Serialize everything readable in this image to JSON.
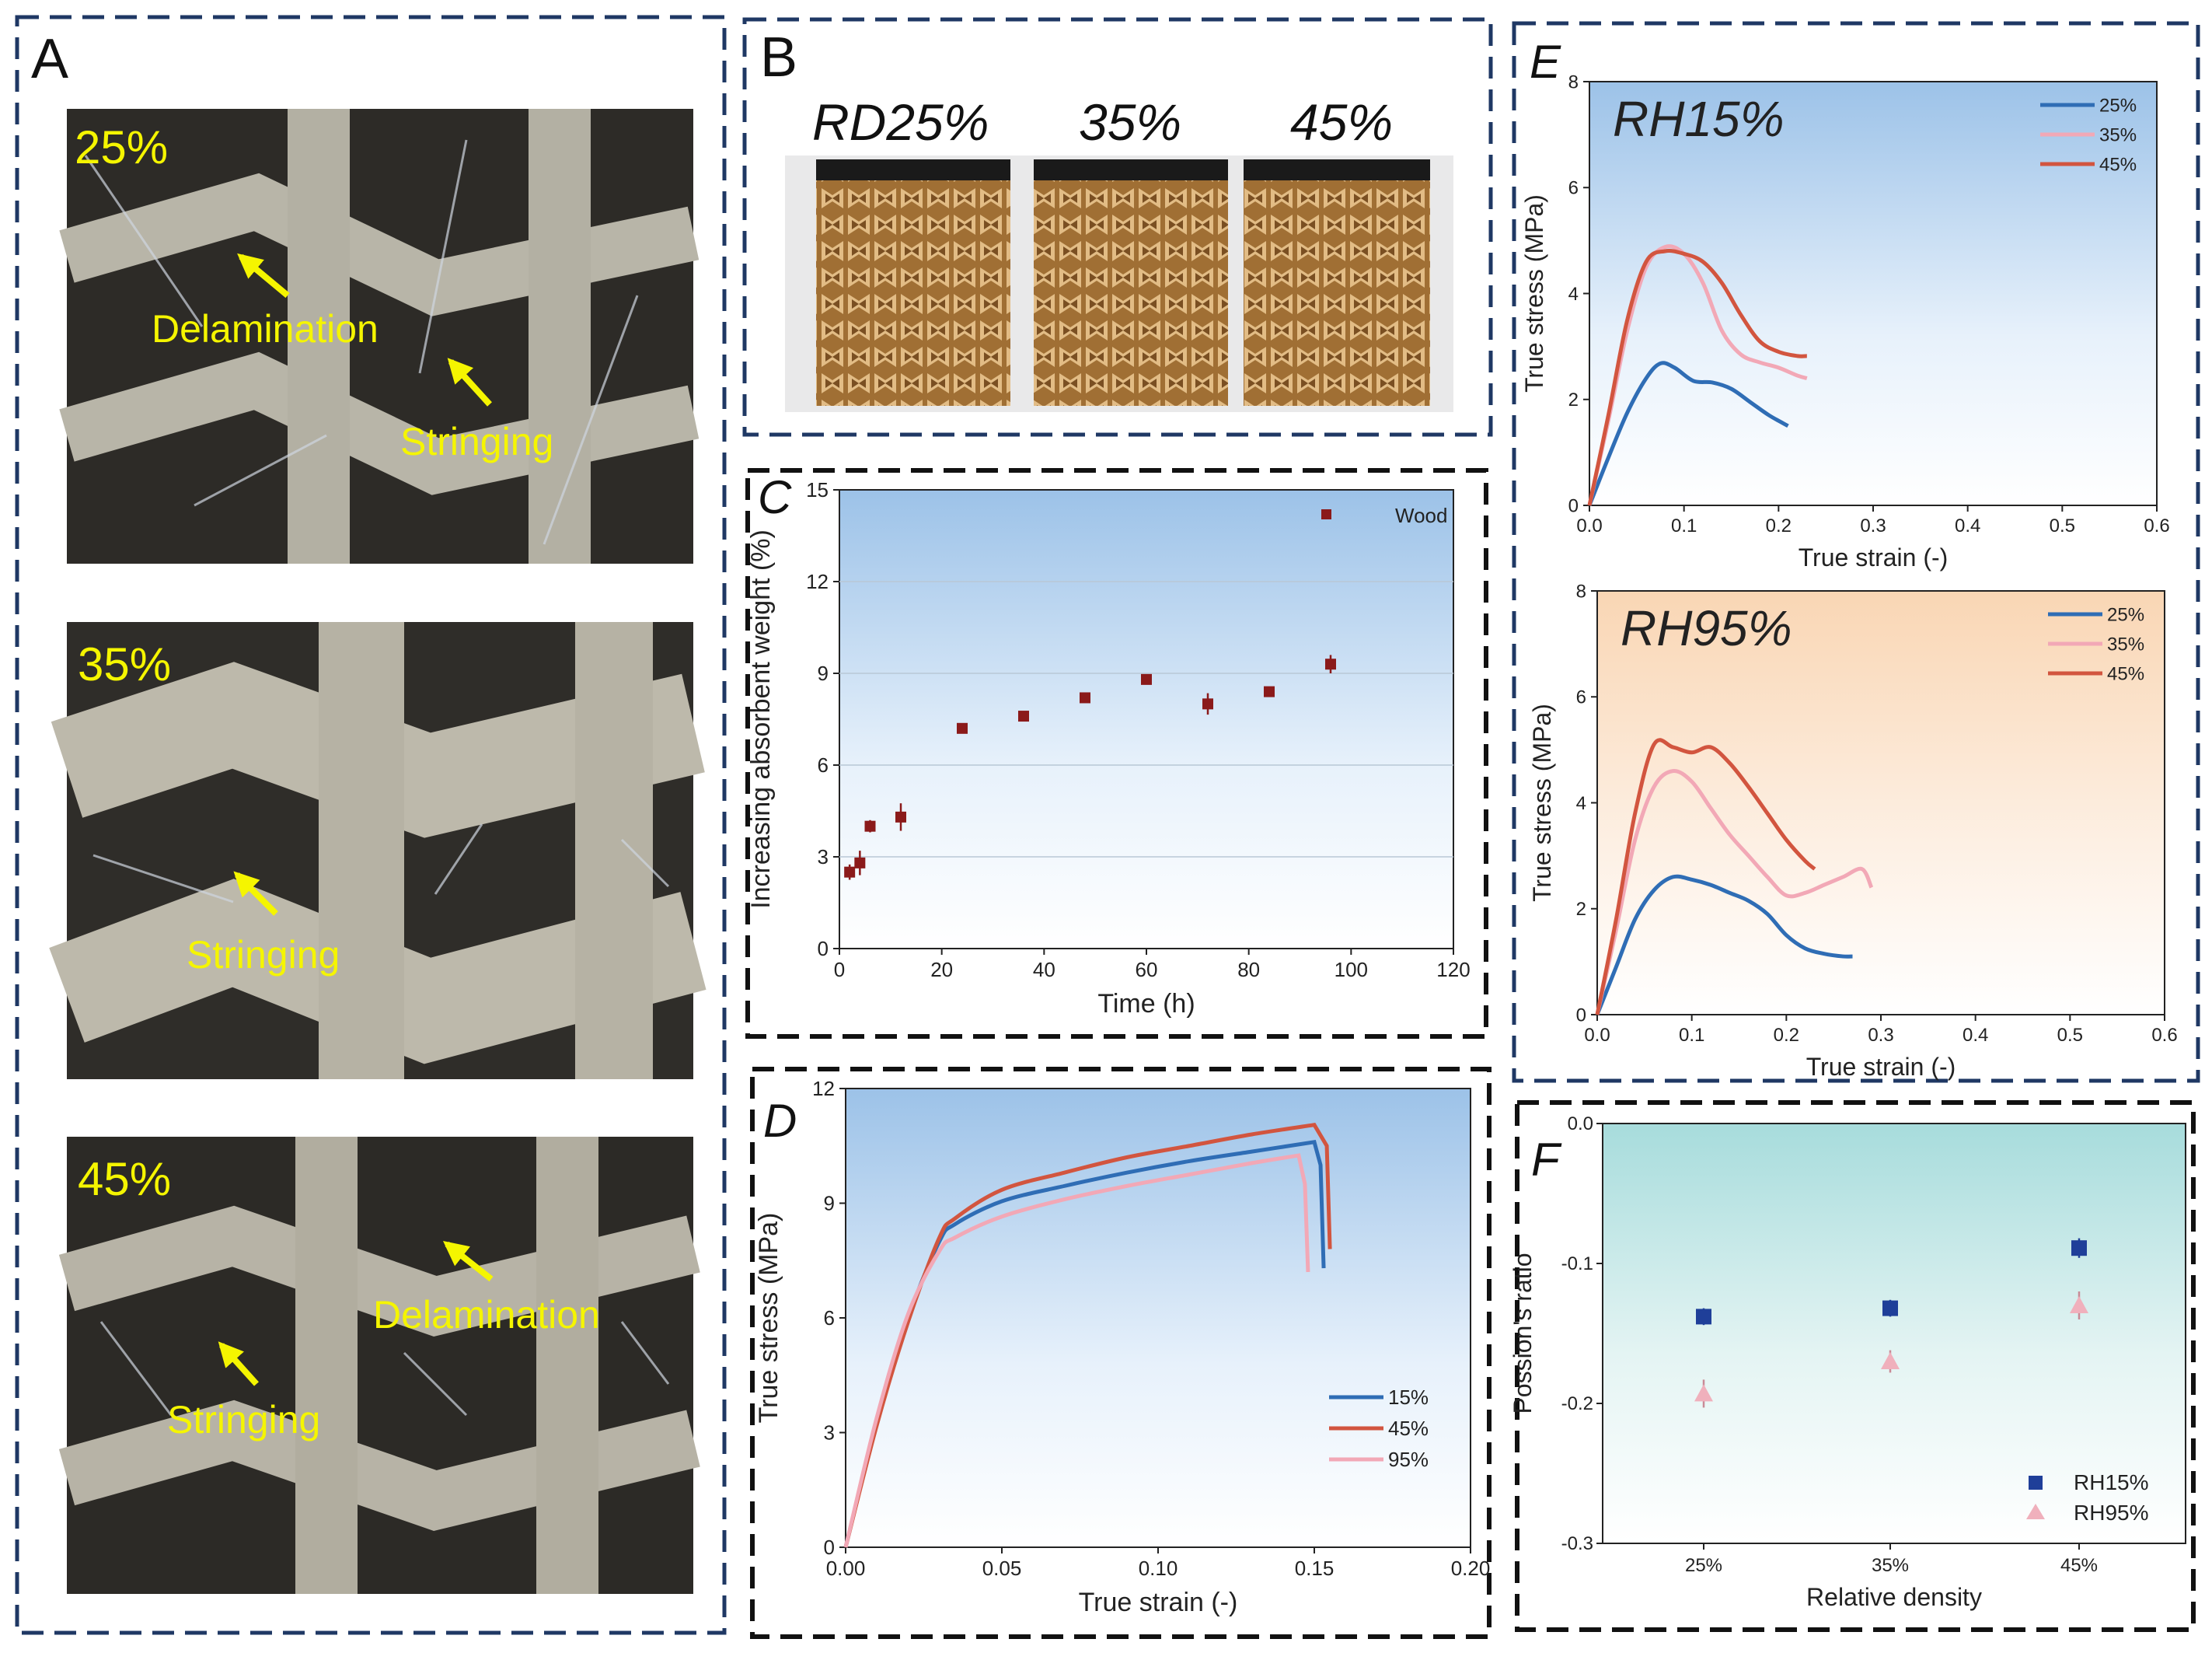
{
  "panels": {
    "A": {
      "letter": "A",
      "photos": [
        {
          "label": "25%",
          "annotations": [
            "Delamination",
            "Stringing"
          ]
        },
        {
          "label": "35%",
          "annotations": [
            "Stringing"
          ]
        },
        {
          "label": "45%",
          "annotations": [
            "Delamination",
            "Stringing"
          ]
        }
      ]
    },
    "B": {
      "letter": "B",
      "sample_labels": [
        "RD25%",
        "35%",
        "45%"
      ]
    }
  },
  "colors": {
    "border_navy": "#1f3864",
    "border_black": "#111111",
    "annotation": "#f5f500",
    "blue_line": "#2f6db5",
    "red_line": "#d2553f",
    "pink_line": "#f2a8b6",
    "marker_red": "#8b1a1a",
    "marker_blue": "#1f3f99",
    "marker_pink": "#f0b0bc"
  },
  "chart_data": [
    {
      "id": "C",
      "type": "scatter",
      "panel_letter": "C",
      "xlabel": "Time (h)",
      "ylabel": "Increasing absorbent weight (%)",
      "xlim": [
        0,
        120
      ],
      "ylim": [
        0,
        15
      ],
      "xticks": [
        "0",
        "20",
        "40",
        "60",
        "80",
        "100",
        "120"
      ],
      "yticks": [
        "0",
        "3",
        "6",
        "9",
        "12",
        "15"
      ],
      "grid": true,
      "legend": "top-right",
      "series": [
        {
          "name": "Wood",
          "x": [
            2,
            4,
            6,
            12,
            24,
            36,
            48,
            60,
            72,
            84,
            96
          ],
          "y": [
            2.5,
            2.8,
            4.0,
            4.3,
            7.2,
            7.6,
            8.2,
            8.8,
            8.0,
            8.4,
            9.3
          ],
          "err": [
            0.25,
            0.4,
            0.2,
            0.45,
            0.1,
            0.1,
            0.1,
            0.1,
            0.35,
            0.15,
            0.3
          ]
        }
      ]
    },
    {
      "id": "D",
      "type": "line",
      "panel_letter": "D",
      "xlabel": "True strain (-)",
      "ylabel": "True stress (MPa)",
      "xlim": [
        0,
        0.2
      ],
      "ylim": [
        0,
        12
      ],
      "xticks": [
        "0.00",
        "0.05",
        "0.10",
        "0.15",
        "0.20"
      ],
      "yticks": [
        "0",
        "3",
        "6",
        "9",
        "12"
      ],
      "legend": "bottom-right",
      "series": [
        {
          "name": "15%",
          "x": [
            0,
            0.01,
            0.02,
            0.03,
            0.035,
            0.05,
            0.07,
            0.09,
            0.11,
            0.13,
            0.15,
            0.152,
            0.153
          ],
          "y": [
            0,
            3.3,
            6.0,
            8.0,
            8.45,
            9.05,
            9.45,
            9.8,
            10.1,
            10.35,
            10.6,
            10.0,
            7.3
          ]
        },
        {
          "name": "45%",
          "x": [
            0,
            0.01,
            0.02,
            0.03,
            0.035,
            0.05,
            0.07,
            0.09,
            0.11,
            0.13,
            0.15,
            0.154,
            0.155
          ],
          "y": [
            0,
            3.2,
            5.9,
            8.1,
            8.6,
            9.35,
            9.8,
            10.2,
            10.5,
            10.8,
            11.05,
            10.5,
            7.8
          ]
        },
        {
          "name": "95%",
          "x": [
            0,
            0.01,
            0.02,
            0.03,
            0.035,
            0.05,
            0.07,
            0.09,
            0.11,
            0.13,
            0.145,
            0.147,
            0.148
          ],
          "y": [
            0,
            3.4,
            6.1,
            7.75,
            8.1,
            8.65,
            9.1,
            9.45,
            9.75,
            10.05,
            10.25,
            9.5,
            7.2
          ]
        }
      ]
    },
    {
      "id": "E1",
      "type": "line",
      "panel_letter": "E",
      "title": "RH15%",
      "xlabel": "True strain (-)",
      "ylabel": "True stress (MPa)",
      "xlim": [
        0,
        0.6
      ],
      "ylim": [
        0,
        8
      ],
      "xticks": [
        "0.0",
        "0.1",
        "0.2",
        "0.3",
        "0.4",
        "0.5",
        "0.6"
      ],
      "yticks": [
        "0",
        "2",
        "4",
        "6",
        "8"
      ],
      "legend": "top-right",
      "series": [
        {
          "name": "25%",
          "x": [
            0,
            0.02,
            0.04,
            0.06,
            0.075,
            0.09,
            0.11,
            0.13,
            0.15,
            0.17,
            0.19,
            0.21
          ],
          "y": [
            0,
            0.9,
            1.75,
            2.4,
            2.68,
            2.6,
            2.35,
            2.32,
            2.2,
            1.95,
            1.7,
            1.5
          ]
        },
        {
          "name": "35%",
          "x": [
            0,
            0.02,
            0.04,
            0.06,
            0.08,
            0.1,
            0.12,
            0.14,
            0.16,
            0.18,
            0.2,
            0.22,
            0.23
          ],
          "y": [
            0,
            1.6,
            3.3,
            4.5,
            4.88,
            4.75,
            4.2,
            3.3,
            2.85,
            2.7,
            2.6,
            2.45,
            2.4
          ]
        },
        {
          "name": "45%",
          "x": [
            0,
            0.02,
            0.04,
            0.06,
            0.08,
            0.1,
            0.12,
            0.14,
            0.16,
            0.18,
            0.2,
            0.22,
            0.23
          ],
          "y": [
            0,
            1.7,
            3.5,
            4.6,
            4.8,
            4.75,
            4.6,
            4.2,
            3.6,
            3.1,
            2.9,
            2.82,
            2.82
          ]
        }
      ]
    },
    {
      "id": "E2",
      "type": "line",
      "title": "RH95%",
      "xlabel": "True strain (-)",
      "ylabel": "True stress (MPa)",
      "xlim": [
        0,
        0.6
      ],
      "ylim": [
        0,
        8
      ],
      "xticks": [
        "0.0",
        "0.1",
        "0.2",
        "0.3",
        "0.4",
        "0.5",
        "0.6"
      ],
      "yticks": [
        "0",
        "2",
        "4",
        "6",
        "8"
      ],
      "legend": "top-right",
      "series": [
        {
          "name": "25%",
          "x": [
            0,
            0.02,
            0.04,
            0.06,
            0.08,
            0.1,
            0.12,
            0.14,
            0.16,
            0.18,
            0.2,
            0.22,
            0.24,
            0.26,
            0.27
          ],
          "y": [
            0,
            0.9,
            1.8,
            2.35,
            2.6,
            2.55,
            2.45,
            2.3,
            2.15,
            1.9,
            1.5,
            1.25,
            1.15,
            1.1,
            1.1
          ]
        },
        {
          "name": "35%",
          "x": [
            0,
            0.02,
            0.04,
            0.06,
            0.08,
            0.1,
            0.12,
            0.14,
            0.16,
            0.18,
            0.2,
            0.22,
            0.24,
            0.26,
            0.28,
            0.29
          ],
          "y": [
            0,
            1.6,
            3.3,
            4.3,
            4.6,
            4.4,
            3.9,
            3.4,
            3.0,
            2.6,
            2.25,
            2.3,
            2.45,
            2.6,
            2.75,
            2.4
          ]
        },
        {
          "name": "45%",
          "x": [
            0,
            0.02,
            0.04,
            0.06,
            0.08,
            0.1,
            0.12,
            0.14,
            0.16,
            0.18,
            0.2,
            0.22,
            0.23
          ],
          "y": [
            0,
            1.8,
            3.8,
            5.1,
            5.05,
            4.95,
            5.05,
            4.75,
            4.3,
            3.8,
            3.3,
            2.9,
            2.75
          ]
        }
      ]
    },
    {
      "id": "F",
      "type": "scatter",
      "panel_letter": "F",
      "xlabel": "Relative density",
      "ylabel": "Possion's ratio",
      "categories": [
        "25%",
        "35%",
        "45%"
      ],
      "ylim": [
        -0.3,
        0.0
      ],
      "yticks": [
        "0.0",
        "-0.1",
        "-0.2",
        "-0.3"
      ],
      "legend": "bottom-right",
      "series": [
        {
          "name": "RH15%",
          "values": [
            -0.138,
            -0.132,
            -0.089
          ],
          "err": [
            0.006,
            0.006,
            0.007
          ]
        },
        {
          "name": "RH95%",
          "values": [
            -0.193,
            -0.17,
            -0.13
          ],
          "err": [
            0.01,
            0.008,
            0.01
          ]
        }
      ]
    }
  ]
}
